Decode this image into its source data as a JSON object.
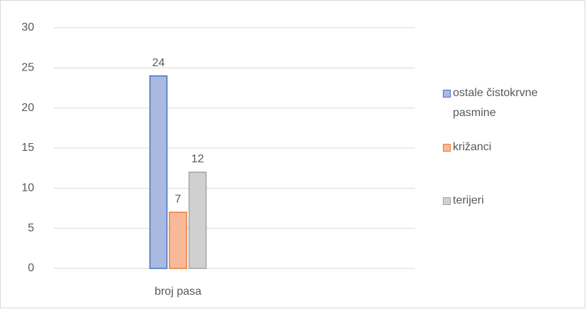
{
  "chart_data": {
    "type": "bar",
    "categories": [
      "broj pasa"
    ],
    "series": [
      {
        "name": "ostale čistokrvne pasmine",
        "color": "#4472c4",
        "values": [
          24
        ]
      },
      {
        "name": "križanci",
        "color": "#ed7d31",
        "values": [
          7
        ]
      },
      {
        "name": "terijeri",
        "color": "#a5a5a5",
        "values": [
          12
        ]
      }
    ],
    "ylim": [
      0,
      30
    ],
    "yticks": [
      0,
      5,
      10,
      15,
      20,
      25,
      30
    ],
    "grid": true,
    "legend": "right"
  }
}
